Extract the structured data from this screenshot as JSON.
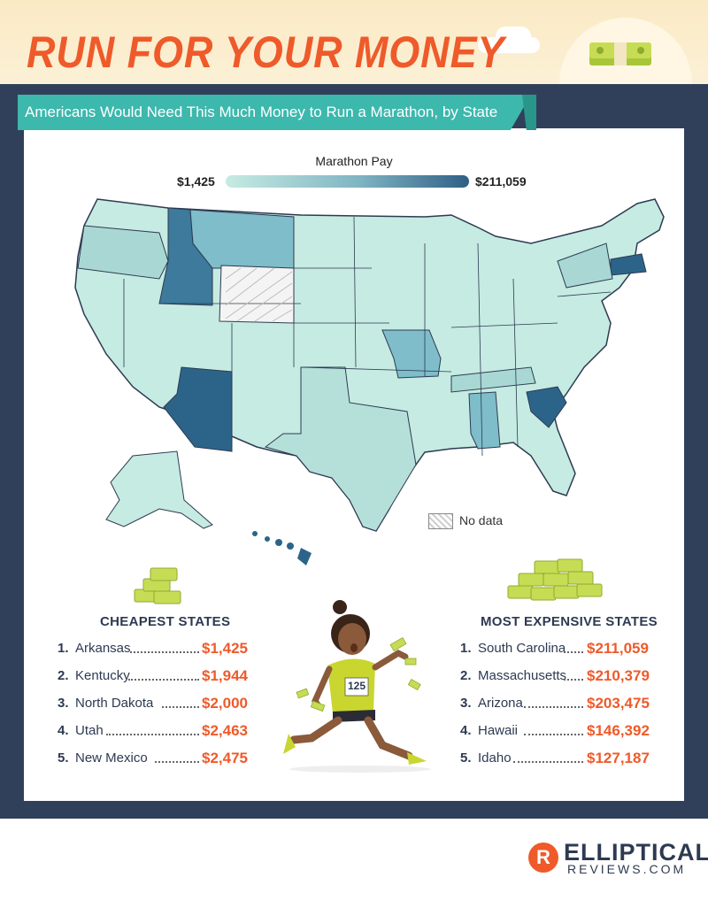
{
  "header": {
    "title": "RUN FOR YOUR MONEY",
    "subtitle": "Americans Would Need This Much Money to Run a Marathon, by State"
  },
  "legend": {
    "title": "Marathon Pay",
    "min_label": "$1,425",
    "max_label": "$211,059",
    "no_data_label": "No data"
  },
  "colors": {
    "title": "#ef5a2a",
    "frame": "#31405a",
    "banner": "#3cb8ad",
    "scale_low": "#c6ebe2",
    "scale_mid": "#7fb4c2",
    "scale_high": "#2f5f86",
    "amount": "#ef5a2a"
  },
  "map": {
    "highlighted_states": [
      {
        "name": "South Carolina",
        "shade": "high"
      },
      {
        "name": "Massachusetts",
        "shade": "high"
      },
      {
        "name": "Arizona",
        "shade": "high"
      },
      {
        "name": "Hawaii",
        "shade": "high"
      },
      {
        "name": "Idaho",
        "shade": "high"
      },
      {
        "name": "Montana",
        "shade": "mid"
      },
      {
        "name": "Missouri",
        "shade": "mid"
      },
      {
        "name": "Alabama",
        "shade": "mid"
      },
      {
        "name": "Wyoming",
        "shade": "none"
      }
    ]
  },
  "cheapest": {
    "title": "CHEAPEST STATES",
    "items": [
      {
        "rank": "1.",
        "state": "Arkansas",
        "amount": "$1,425"
      },
      {
        "rank": "2.",
        "state": "Kentucky",
        "amount": "$1,944"
      },
      {
        "rank": "3.",
        "state": "North Dakota",
        "amount": "$2,000"
      },
      {
        "rank": "4.",
        "state": "Utah",
        "amount": "$2,463"
      },
      {
        "rank": "5.",
        "state": "New Mexico",
        "amount": "$2,475"
      }
    ]
  },
  "expensive": {
    "title": "MOST EXPENSIVE STATES",
    "items": [
      {
        "rank": "1.",
        "state": "South Carolina",
        "amount": "$211,059"
      },
      {
        "rank": "2.",
        "state": "Massachusetts",
        "amount": "$210,379"
      },
      {
        "rank": "3.",
        "state": "Arizona",
        "amount": "$203,475"
      },
      {
        "rank": "4.",
        "state": "Hawaii",
        "amount": "$146,392"
      },
      {
        "rank": "5.",
        "state": "Idaho",
        "amount": "$127,187"
      }
    ]
  },
  "runner": {
    "bib": "125"
  },
  "logo": {
    "line1": "ELLIPTICAL",
    "line2": "REVIEWS.COM",
    "mark": "R"
  }
}
